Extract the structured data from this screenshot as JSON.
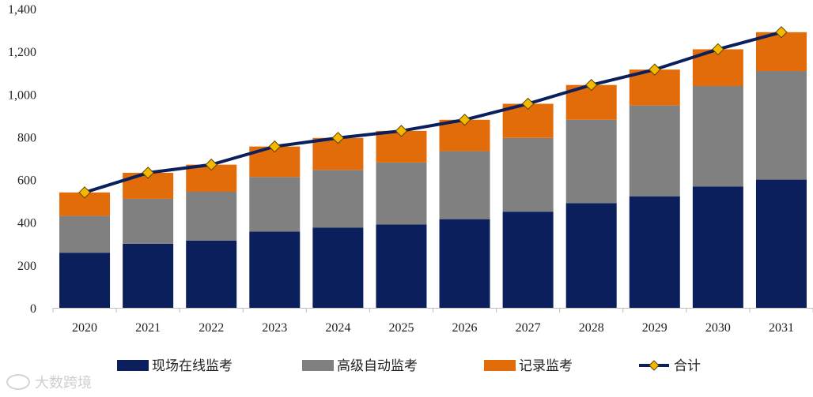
{
  "colors": {
    "onsite": "#0a1f5c",
    "auto": "#808080",
    "record": "#e36c0a",
    "total_line": "#0a1f5c",
    "total_marker": "#f5b800",
    "axis": "#bfbfbf"
  },
  "chart_data": {
    "type": "bar",
    "stacked": true,
    "categories": [
      "2020",
      "2021",
      "2022",
      "2023",
      "2024",
      "2025",
      "2026",
      "2027",
      "2028",
      "2029",
      "2030",
      "2031"
    ],
    "series": [
      {
        "name": "现场在线监考",
        "values": [
          258,
          300,
          315,
          357,
          375,
          390,
          415,
          450,
          490,
          522,
          568,
          600
        ]
      },
      {
        "name": "高级自动监考",
        "values": [
          172,
          210,
          228,
          255,
          270,
          290,
          318,
          345,
          390,
          425,
          470,
          508
        ]
      },
      {
        "name": "记录监考",
        "values": [
          110,
          122,
          127,
          143,
          150,
          148,
          147,
          160,
          163,
          168,
          172,
          182
        ]
      }
    ],
    "line_series": {
      "name": "合计",
      "values": [
        540,
        632,
        670,
        755,
        795,
        828,
        880,
        955,
        1043,
        1115,
        1210,
        1290
      ]
    },
    "ylim": [
      0,
      1400
    ],
    "yticks": [
      "0",
      "200",
      "400",
      "600",
      "800",
      "1,000",
      "1,200",
      "1,400"
    ],
    "ytick_values": [
      0,
      200,
      400,
      600,
      800,
      1000,
      1200,
      1400
    ],
    "legend_position": "bottom",
    "title": "",
    "xlabel": "",
    "ylabel": ""
  },
  "watermark": "大数跨境"
}
